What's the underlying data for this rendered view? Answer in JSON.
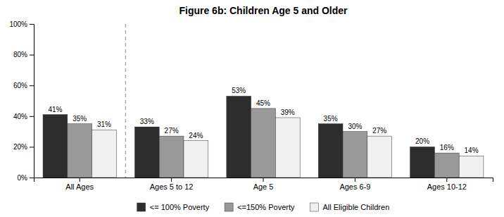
{
  "chart_data": {
    "type": "bar",
    "title": "Figure 6b: Children Age 5 and Older",
    "categories": [
      "All Ages",
      "Ages 5 to 12",
      "Age 5",
      "Ages 6-9",
      "Ages 10-12"
    ],
    "series": [
      {
        "name": "<= 100% Poverty",
        "color": "#2d2d2d",
        "values": [
          41,
          33,
          53,
          35,
          20
        ],
        "value_labels": [
          "41%",
          "33%",
          "53%",
          "35%",
          "20%"
        ]
      },
      {
        "name": "<=150% Poverty",
        "color": "#999999",
        "values": [
          35,
          27,
          45,
          30,
          16
        ],
        "value_labels": [
          "35%",
          "27%",
          "45%",
          "30%",
          "16%"
        ]
      },
      {
        "name": "All Eligible Children",
        "color": "#f0f0f0",
        "values": [
          31,
          24,
          39,
          27,
          14
        ],
        "value_labels": [
          "31%",
          "24%",
          "39%",
          "27%",
          "14%"
        ]
      }
    ],
    "ylim": [
      0,
      100
    ],
    "yticks": [
      {
        "value": 0,
        "label": "0%"
      },
      {
        "value": 20,
        "label": "20%"
      },
      {
        "value": 40,
        "label": "40%"
      },
      {
        "value": 60,
        "label": "60%"
      },
      {
        "value": 80,
        "label": "80%"
      },
      {
        "value": 100,
        "label": "100%"
      }
    ],
    "grid": false,
    "legend": "bottom",
    "data_labels": true
  }
}
